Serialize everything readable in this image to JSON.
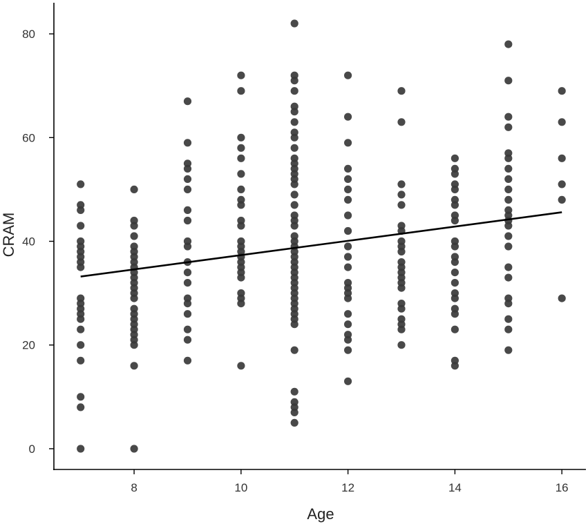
{
  "chart_data": {
    "type": "scatter",
    "title": "",
    "xlabel": "Age",
    "ylabel": "CRAM",
    "xlim": [
      6.5,
      16.45
    ],
    "ylim": [
      -4,
      86
    ],
    "xticks": [
      8,
      10,
      12,
      14,
      16
    ],
    "yticks": [
      0,
      20,
      40,
      60,
      80
    ],
    "grid": false,
    "legend": "none",
    "point_color": "#3a3a3a",
    "line_color": "#000000",
    "trend_line": {
      "x": [
        7,
        16
      ],
      "y": [
        33.2,
        45.6
      ]
    },
    "series": [
      {
        "points": [
          [
            7,
            51
          ],
          [
            7,
            47
          ],
          [
            7,
            46
          ],
          [
            7,
            43
          ],
          [
            7,
            40
          ],
          [
            7,
            39
          ],
          [
            7,
            38
          ],
          [
            7,
            37
          ],
          [
            7,
            36
          ],
          [
            7,
            35
          ],
          [
            7,
            29
          ],
          [
            7,
            28
          ],
          [
            7,
            27
          ],
          [
            7,
            26
          ],
          [
            7,
            25
          ],
          [
            7,
            23
          ],
          [
            7,
            20
          ],
          [
            7,
            17
          ],
          [
            7,
            10
          ],
          [
            7,
            8
          ],
          [
            7,
            0
          ],
          [
            8,
            50
          ],
          [
            8,
            44
          ],
          [
            8,
            43
          ],
          [
            8,
            41
          ],
          [
            8,
            39
          ],
          [
            8,
            38
          ],
          [
            8,
            37
          ],
          [
            8,
            36
          ],
          [
            8,
            35
          ],
          [
            8,
            34
          ],
          [
            8,
            33
          ],
          [
            8,
            32
          ],
          [
            8,
            31
          ],
          [
            8,
            30
          ],
          [
            8,
            29
          ],
          [
            8,
            27
          ],
          [
            8,
            26
          ],
          [
            8,
            25
          ],
          [
            8,
            24
          ],
          [
            8,
            23
          ],
          [
            8,
            22
          ],
          [
            8,
            21
          ],
          [
            8,
            20
          ],
          [
            8,
            16
          ],
          [
            8,
            0
          ],
          [
            9,
            67
          ],
          [
            9,
            59
          ],
          [
            9,
            55
          ],
          [
            9,
            54
          ],
          [
            9,
            52
          ],
          [
            9,
            50
          ],
          [
            9,
            46
          ],
          [
            9,
            44
          ],
          [
            9,
            40
          ],
          [
            9,
            39
          ],
          [
            9,
            36
          ],
          [
            9,
            34
          ],
          [
            9,
            32
          ],
          [
            9,
            29
          ],
          [
            9,
            28
          ],
          [
            9,
            26
          ],
          [
            9,
            23
          ],
          [
            9,
            21
          ],
          [
            9,
            17
          ],
          [
            10,
            72
          ],
          [
            10,
            69
          ],
          [
            10,
            60
          ],
          [
            10,
            58
          ],
          [
            10,
            56
          ],
          [
            10,
            53
          ],
          [
            10,
            50
          ],
          [
            10,
            48
          ],
          [
            10,
            47
          ],
          [
            10,
            44
          ],
          [
            10,
            43
          ],
          [
            10,
            40
          ],
          [
            10,
            39
          ],
          [
            10,
            38
          ],
          [
            10,
            37
          ],
          [
            10,
            36
          ],
          [
            10,
            35
          ],
          [
            10,
            34
          ],
          [
            10,
            33
          ],
          [
            10,
            30
          ],
          [
            10,
            29
          ],
          [
            10,
            28
          ],
          [
            10,
            16
          ],
          [
            11,
            82
          ],
          [
            11,
            72
          ],
          [
            11,
            71
          ],
          [
            11,
            69
          ],
          [
            11,
            66
          ],
          [
            11,
            65
          ],
          [
            11,
            63
          ],
          [
            11,
            61
          ],
          [
            11,
            60
          ],
          [
            11,
            58
          ],
          [
            11,
            56
          ],
          [
            11,
            55
          ],
          [
            11,
            54
          ],
          [
            11,
            53
          ],
          [
            11,
            52
          ],
          [
            11,
            51
          ],
          [
            11,
            49
          ],
          [
            11,
            47
          ],
          [
            11,
            45
          ],
          [
            11,
            44
          ],
          [
            11,
            43
          ],
          [
            11,
            41
          ],
          [
            11,
            40
          ],
          [
            11,
            39
          ],
          [
            11,
            38
          ],
          [
            11,
            37
          ],
          [
            11,
            36
          ],
          [
            11,
            35
          ],
          [
            11,
            34
          ],
          [
            11,
            33
          ],
          [
            11,
            32
          ],
          [
            11,
            31
          ],
          [
            11,
            30
          ],
          [
            11,
            29
          ],
          [
            11,
            28
          ],
          [
            11,
            27
          ],
          [
            11,
            26
          ],
          [
            11,
            25
          ],
          [
            11,
            24
          ],
          [
            11,
            19
          ],
          [
            11,
            11
          ],
          [
            11,
            9
          ],
          [
            11,
            8
          ],
          [
            11,
            7
          ],
          [
            11,
            5
          ],
          [
            12,
            72
          ],
          [
            12,
            64
          ],
          [
            12,
            59
          ],
          [
            12,
            54
          ],
          [
            12,
            52
          ],
          [
            12,
            50
          ],
          [
            12,
            48
          ],
          [
            12,
            45
          ],
          [
            12,
            42
          ],
          [
            12,
            39
          ],
          [
            12,
            37
          ],
          [
            12,
            35
          ],
          [
            12,
            32
          ],
          [
            12,
            31
          ],
          [
            12,
            30
          ],
          [
            12,
            29
          ],
          [
            12,
            26
          ],
          [
            12,
            24
          ],
          [
            12,
            22
          ],
          [
            12,
            21
          ],
          [
            12,
            19
          ],
          [
            12,
            13
          ],
          [
            13,
            69
          ],
          [
            13,
            63
          ],
          [
            13,
            51
          ],
          [
            13,
            49
          ],
          [
            13,
            47
          ],
          [
            13,
            43
          ],
          [
            13,
            42
          ],
          [
            13,
            40
          ],
          [
            13,
            39
          ],
          [
            13,
            38
          ],
          [
            13,
            36
          ],
          [
            13,
            35
          ],
          [
            13,
            34
          ],
          [
            13,
            33
          ],
          [
            13,
            32
          ],
          [
            13,
            31
          ],
          [
            13,
            28
          ],
          [
            13,
            27
          ],
          [
            13,
            25
          ],
          [
            13,
            24
          ],
          [
            13,
            23
          ],
          [
            13,
            20
          ],
          [
            14,
            56
          ],
          [
            14,
            54
          ],
          [
            14,
            53
          ],
          [
            14,
            51
          ],
          [
            14,
            50
          ],
          [
            14,
            48
          ],
          [
            14,
            47
          ],
          [
            14,
            45
          ],
          [
            14,
            44
          ],
          [
            14,
            40
          ],
          [
            14,
            39
          ],
          [
            14,
            37
          ],
          [
            14,
            36
          ],
          [
            14,
            34
          ],
          [
            14,
            32
          ],
          [
            14,
            30
          ],
          [
            14,
            29
          ],
          [
            14,
            27
          ],
          [
            14,
            26
          ],
          [
            14,
            23
          ],
          [
            14,
            17
          ],
          [
            14,
            16
          ],
          [
            15,
            78
          ],
          [
            15,
            71
          ],
          [
            15,
            64
          ],
          [
            15,
            62
          ],
          [
            15,
            57
          ],
          [
            15,
            56
          ],
          [
            15,
            54
          ],
          [
            15,
            52
          ],
          [
            15,
            50
          ],
          [
            15,
            48
          ],
          [
            15,
            46
          ],
          [
            15,
            45
          ],
          [
            15,
            44
          ],
          [
            15,
            43
          ],
          [
            15,
            41
          ],
          [
            15,
            39
          ],
          [
            15,
            35
          ],
          [
            15,
            33
          ],
          [
            15,
            29
          ],
          [
            15,
            28
          ],
          [
            15,
            25
          ],
          [
            15,
            23
          ],
          [
            15,
            19
          ],
          [
            16,
            69
          ],
          [
            16,
            63
          ],
          [
            16,
            56
          ],
          [
            16,
            51
          ],
          [
            16,
            48
          ],
          [
            16,
            29
          ]
        ]
      }
    ]
  }
}
